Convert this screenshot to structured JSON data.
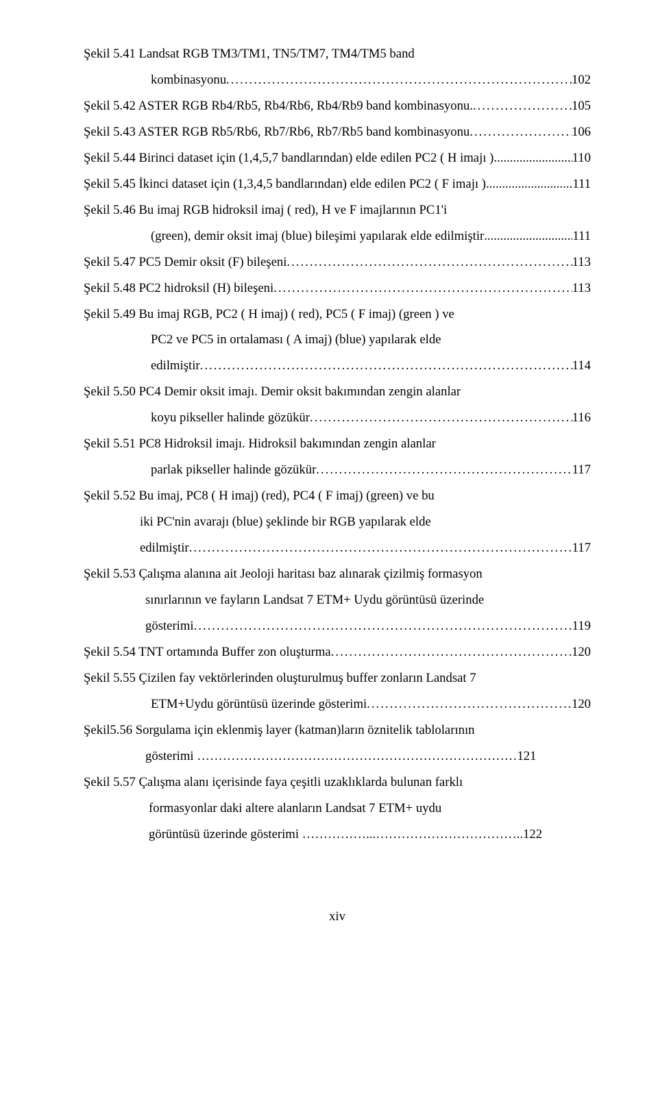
{
  "entries": [
    {
      "first": "Şekil 5.41 Landsat RGB TM3/TM1, TN5/TM7, TM4/TM5 band",
      "cont": [
        {
          "text": "kombinasyonu",
          "dots": true,
          "page": "102"
        }
      ]
    },
    {
      "first": "Şekil 5.42 ASTER  RGB Rb4/Rb5, Rb4/Rb6, Rb4/Rb9 band  kombinasyonu.",
      "first_dots": true,
      "first_page": "105"
    },
    {
      "first": "Şekil 5.43 ASTER  RGB Rb5/Rb6, Rb7/Rb6, Rb7/Rb5 band  kombinasyonu",
      "first_dots": true,
      "first_page": "106"
    },
    {
      "first": "Şekil 5.44 Birinci dataset için (1,4,5,7 bandlarından)  elde edilen PC2  ( H imajı )",
      "first_dots": true,
      "first_page": "110",
      "first_dots_short": true
    },
    {
      "first": "Şekil 5.45  İkinci dataset için (1,3,4,5 bandlarından)  elde edilen PC2  ( F imajı )",
      "first_dots": true,
      "first_page": "111",
      "first_dots_short": true
    },
    {
      "first": "Şekil 5.46 Bu imaj RGB hidroksil imaj ( red), H ve F imajlarının PC1'i",
      "cont": [
        {
          "text": "(green),   demir    oksit imaj (blue) bileşimi yapılarak elde edilmiştir",
          "dots": true,
          "page": "111",
          "short": true
        }
      ]
    },
    {
      "first": "Şekil 5.47  PC5  Demir oksit  (F) bileşeni",
      "first_dots": true,
      "first_page": "113"
    },
    {
      "first": "Şekil 5.48 PC2  hidroksil (H) bileşeni",
      "first_dots": true,
      "first_page": "113"
    },
    {
      "first": "Şekil 5.49  Bu imaj RGB, PC2 ( H imaj)  ( red), PC5 ( F imaj) (green ) ve",
      "cont": [
        {
          "text": "PC2 ve PC5 in ortalaması ( A imaj)  (blue) yapılarak elde",
          "dots": false
        },
        {
          "text": "edilmiştir",
          "dots": true,
          "page": "114"
        }
      ]
    },
    {
      "first": "Şekil 5.50 PC4 Demir oksit imajı. Demir oksit bakımından  zengin alanlar",
      "cont": [
        {
          "text": "koyu    pikseller halinde gözükür",
          "dots": true,
          "page": "116"
        }
      ]
    },
    {
      "first": "Şekil 5.51 PC8 Hidroksil  imajı. Hidroksil bakımından  zengin alanlar",
      "cont": [
        {
          "text": "parlak pikseller halinde gözükür",
          "dots": true,
          "page": "117"
        }
      ]
    },
    {
      "first": "Şekil 5.52  Bu imaj,  PC8 ( H imaj) (red),  PC4 ( F imaj) (green)  ve bu",
      "cont": [
        {
          "text": " iki PC'nin   avarajı (blue) şeklinde  bir  RGB  yapılarak elde",
          "dots": false,
          "pad": 82
        },
        {
          "text": " edilmiştir",
          "dots": true,
          "page": "117",
          "pad": 82
        }
      ]
    },
    {
      "first": "Şekil 5.53  Çalışma alanına ait Jeoloji haritası baz alınarak çizilmiş formasyon",
      "cont": [
        {
          "text": " sınırlarının ve fayların Landsat 7 ETM+ Uydu görüntüsü üzerinde",
          "dots": false,
          "pad": 90
        },
        {
          "text": " gösterimi",
          "dots": true,
          "page": "119",
          "pad": 90
        }
      ]
    },
    {
      "first": "Şekil 5.54  TNT ortamında Buffer zon oluşturma",
      "first_dots": true,
      "first_page": "120"
    },
    {
      "first": "Şekil 5.55 Çizilen fay  vektörlerinden oluşturulmuş buffer zonların Landsat 7",
      "cont": [
        {
          "text": "ETM+Uydu görüntüsü üzerinde gösterimi ",
          "dots": true,
          "page": "120"
        }
      ]
    },
    {
      "first": "Şekil5.56 Sorgulama için eklenmiş layer (katman)ların  öznitelik tablolarının",
      "cont": [
        {
          "text": " gösterimi …………………………………………………………………",
          "dots": false,
          "page": "121",
          "pad": 90,
          "tail_page": true
        }
      ]
    },
    {
      "first": "Şekil 5.57  Çalışma alanı içerisinde faya çeşitli uzaklıklarda bulunan farklı",
      "cont": [
        {
          "text": " formasyonlar   daki altere alanların Landsat 7 ETM+ uydu",
          "dots": false,
          "pad": 95
        },
        {
          "text": " görüntüsü üzerinde gösterimi ……………...……………………………..",
          "dots": false,
          "page": "122",
          "pad": 95,
          "tail_page": true
        }
      ]
    }
  ],
  "footer": "xiv"
}
